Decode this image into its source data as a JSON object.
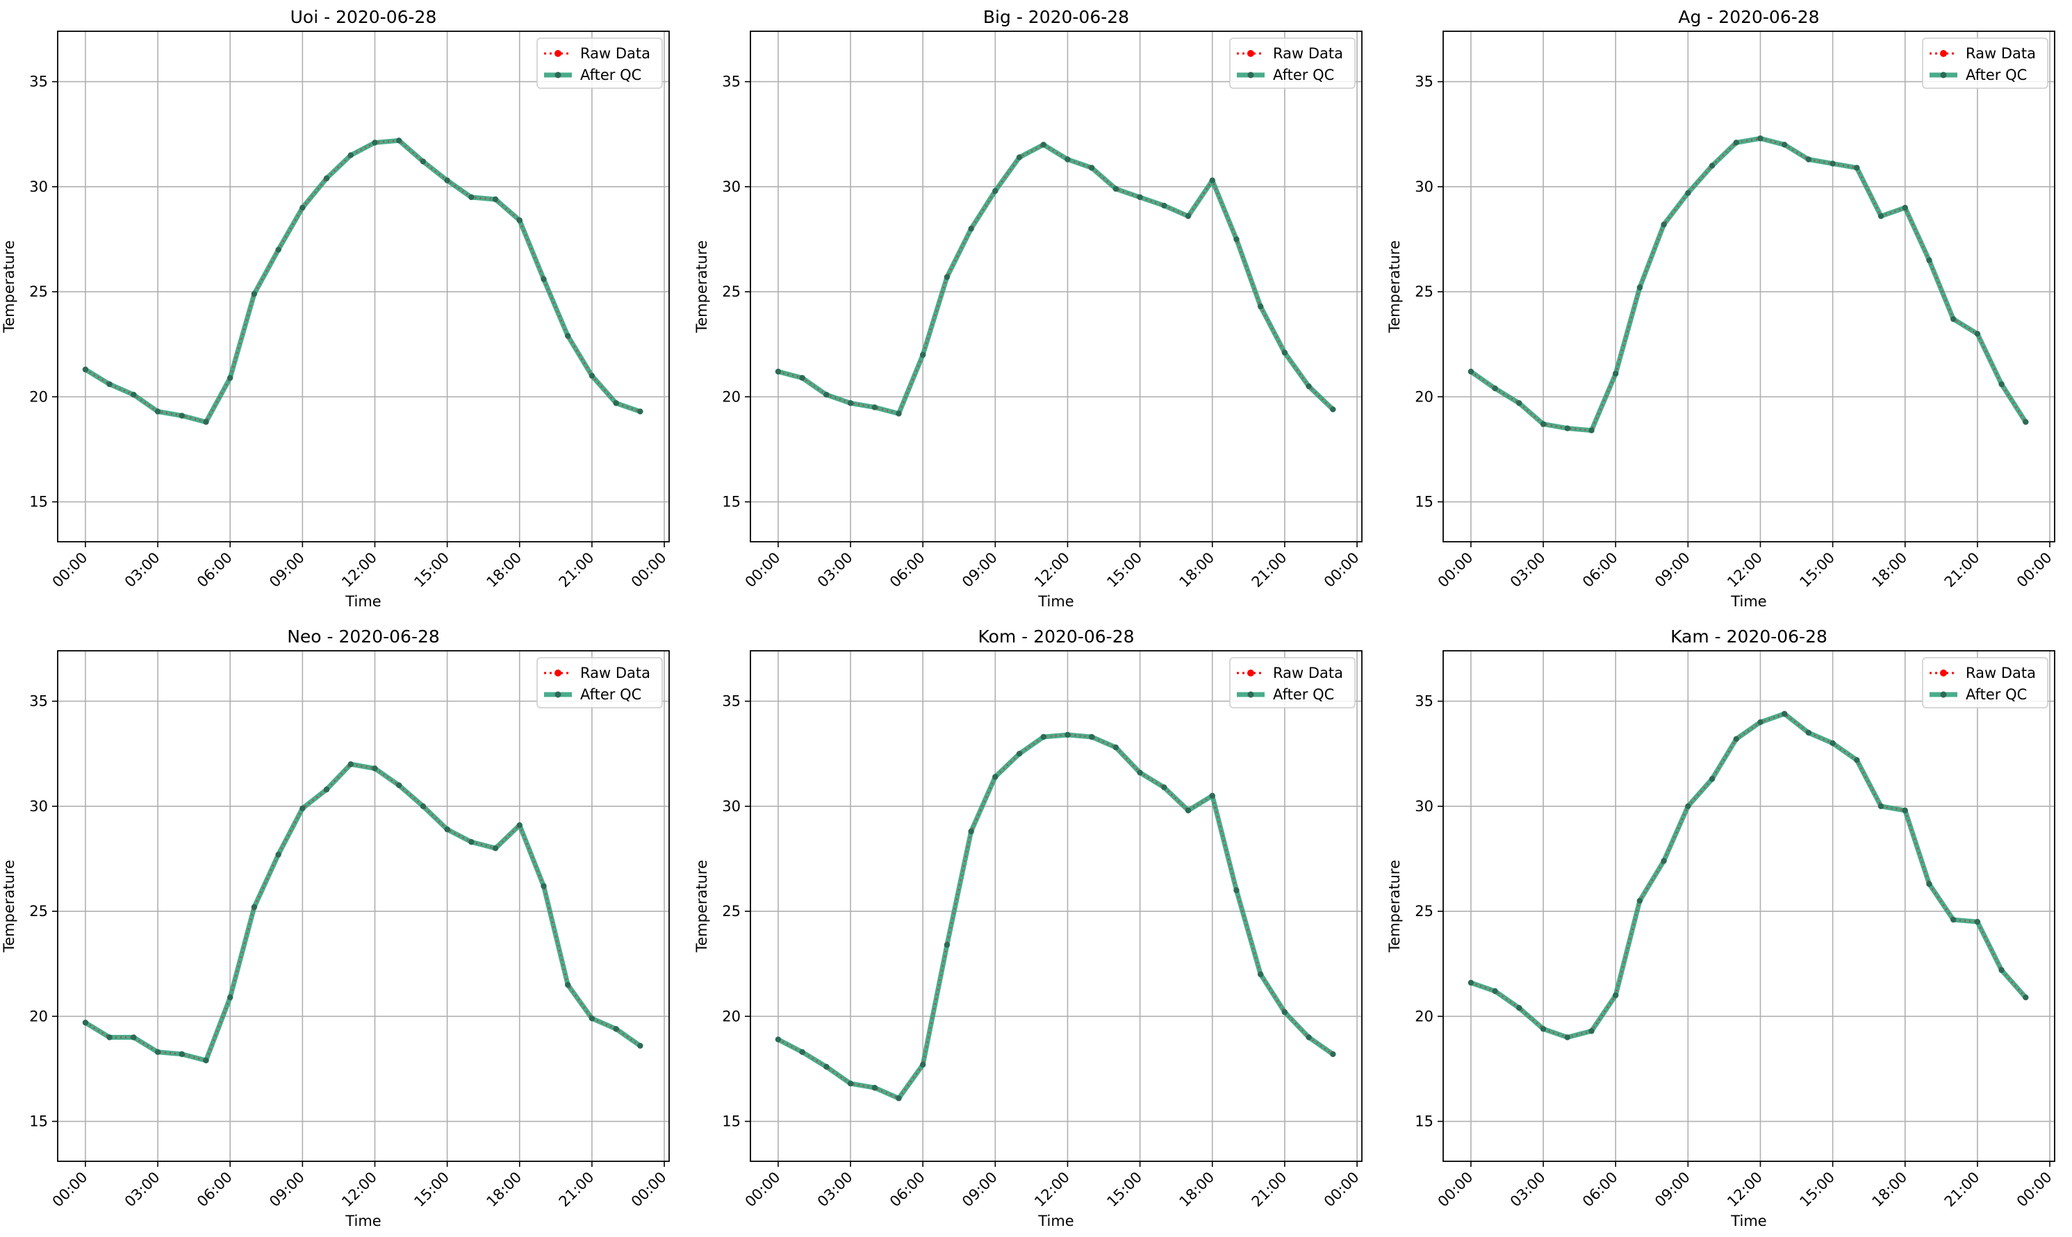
{
  "colors": {
    "raw": "#ff0000",
    "qc": "#2a9d78",
    "qc_marker": "#2d6a55",
    "grid": "#b0b0b0"
  },
  "chart_data": [
    {
      "type": "line",
      "title": "Uoi - 2020-06-28",
      "xlabel": "Time",
      "ylabel": "Temperature",
      "x_hours": [
        0,
        1,
        2,
        3,
        4,
        5,
        6,
        7,
        8,
        9,
        10,
        11,
        12,
        13,
        14,
        15,
        16,
        17,
        18,
        19,
        20,
        21,
        22,
        23
      ],
      "xticks": [
        "00:00",
        "03:00",
        "06:00",
        "09:00",
        "12:00",
        "15:00",
        "18:00",
        "21:00",
        "00:00"
      ],
      "yticks": [
        15,
        20,
        25,
        30,
        35
      ],
      "ylim": [
        13.1,
        37.4
      ],
      "grid": true,
      "legend_position": "top-right",
      "series": [
        {
          "name": "Raw Data",
          "style": "dotted",
          "values": [
            21.3,
            20.6,
            20.1,
            19.3,
            19.1,
            18.8,
            20.9,
            24.9,
            27.0,
            29.0,
            30.4,
            31.5,
            32.1,
            32.2,
            31.2,
            30.3,
            29.5,
            29.4,
            28.4,
            25.6,
            22.9,
            21.0,
            19.7,
            19.3
          ]
        },
        {
          "name": "After QC",
          "style": "solid",
          "values": [
            21.3,
            20.6,
            20.1,
            19.3,
            19.1,
            18.8,
            20.9,
            24.9,
            27.0,
            29.0,
            30.4,
            31.5,
            32.1,
            32.2,
            31.2,
            30.3,
            29.5,
            29.4,
            28.4,
            25.6,
            22.9,
            21.0,
            19.7,
            19.3
          ]
        }
      ]
    },
    {
      "type": "line",
      "title": "Big - 2020-06-28",
      "xlabel": "Time",
      "ylabel": "Temperature",
      "x_hours": [
        0,
        1,
        2,
        3,
        4,
        5,
        6,
        7,
        8,
        9,
        10,
        11,
        12,
        13,
        14,
        15,
        16,
        17,
        18,
        19,
        20,
        21,
        22,
        23
      ],
      "xticks": [
        "00:00",
        "03:00",
        "06:00",
        "09:00",
        "12:00",
        "15:00",
        "18:00",
        "21:00",
        "00:00"
      ],
      "yticks": [
        15,
        20,
        25,
        30,
        35
      ],
      "ylim": [
        13.1,
        37.4
      ],
      "grid": true,
      "legend_position": "top-right",
      "series": [
        {
          "name": "Raw Data",
          "style": "dotted",
          "values": [
            21.2,
            20.9,
            20.1,
            19.7,
            19.5,
            19.2,
            22.0,
            25.7,
            28.0,
            29.8,
            31.4,
            32.0,
            31.3,
            30.9,
            29.9,
            29.5,
            29.1,
            28.6,
            30.3,
            27.5,
            24.3,
            22.1,
            20.5,
            19.4
          ]
        },
        {
          "name": "After QC",
          "style": "solid",
          "values": [
            21.2,
            20.9,
            20.1,
            19.7,
            19.5,
            19.2,
            22.0,
            25.7,
            28.0,
            29.8,
            31.4,
            32.0,
            31.3,
            30.9,
            29.9,
            29.5,
            29.1,
            28.6,
            30.3,
            27.5,
            24.3,
            22.1,
            20.5,
            19.4
          ]
        }
      ]
    },
    {
      "type": "line",
      "title": "Ag - 2020-06-28",
      "xlabel": "Time",
      "ylabel": "Temperature",
      "x_hours": [
        0,
        1,
        2,
        3,
        4,
        5,
        6,
        7,
        8,
        9,
        10,
        11,
        12,
        13,
        14,
        15,
        16,
        17,
        18,
        19,
        20,
        21,
        22,
        23
      ],
      "xticks": [
        "00:00",
        "03:00",
        "06:00",
        "09:00",
        "12:00",
        "15:00",
        "18:00",
        "21:00",
        "00:00"
      ],
      "yticks": [
        15,
        20,
        25,
        30,
        35
      ],
      "ylim": [
        13.1,
        37.4
      ],
      "grid": true,
      "legend_position": "top-right",
      "series": [
        {
          "name": "Raw Data",
          "style": "dotted",
          "values": [
            21.2,
            20.4,
            19.7,
            18.7,
            18.5,
            18.4,
            21.1,
            25.2,
            28.2,
            29.7,
            31.0,
            32.1,
            32.3,
            32.0,
            31.3,
            31.1,
            30.9,
            28.6,
            29.0,
            26.5,
            23.7,
            23.0,
            20.6,
            18.8
          ]
        },
        {
          "name": "After QC",
          "style": "solid",
          "values": [
            21.2,
            20.4,
            19.7,
            18.7,
            18.5,
            18.4,
            21.1,
            25.2,
            28.2,
            29.7,
            31.0,
            32.1,
            32.3,
            32.0,
            31.3,
            31.1,
            30.9,
            28.6,
            29.0,
            26.5,
            23.7,
            23.0,
            20.6,
            18.8
          ]
        }
      ]
    },
    {
      "type": "line",
      "title": "Neo - 2020-06-28",
      "xlabel": "Time",
      "ylabel": "Temperature",
      "x_hours": [
        0,
        1,
        2,
        3,
        4,
        5,
        6,
        7,
        8,
        9,
        10,
        11,
        12,
        13,
        14,
        15,
        16,
        17,
        18,
        19,
        20,
        21,
        22,
        23
      ],
      "xticks": [
        "00:00",
        "03:00",
        "06:00",
        "09:00",
        "12:00",
        "15:00",
        "18:00",
        "21:00",
        "00:00"
      ],
      "yticks": [
        15,
        20,
        25,
        30,
        35
      ],
      "ylim": [
        13.1,
        37.4
      ],
      "grid": true,
      "legend_position": "top-right",
      "series": [
        {
          "name": "Raw Data",
          "style": "dotted",
          "values": [
            19.7,
            19.0,
            19.0,
            18.3,
            18.2,
            17.9,
            20.9,
            25.2,
            27.7,
            29.9,
            30.8,
            32.0,
            31.8,
            31.0,
            30.0,
            28.9,
            28.3,
            28.0,
            29.1,
            26.2,
            21.5,
            19.9,
            19.4,
            18.6
          ]
        },
        {
          "name": "After QC",
          "style": "solid",
          "values": [
            19.7,
            19.0,
            19.0,
            18.3,
            18.2,
            17.9,
            20.9,
            25.2,
            27.7,
            29.9,
            30.8,
            32.0,
            31.8,
            31.0,
            30.0,
            28.9,
            28.3,
            28.0,
            29.1,
            26.2,
            21.5,
            19.9,
            19.4,
            18.6
          ]
        }
      ]
    },
    {
      "type": "line",
      "title": "Kom - 2020-06-28",
      "xlabel": "Time",
      "ylabel": "Temperature",
      "x_hours": [
        0,
        1,
        2,
        3,
        4,
        5,
        6,
        7,
        8,
        9,
        10,
        11,
        12,
        13,
        14,
        15,
        16,
        17,
        18,
        19,
        20,
        21,
        22,
        23
      ],
      "xticks": [
        "00:00",
        "03:00",
        "06:00",
        "09:00",
        "12:00",
        "15:00",
        "18:00",
        "21:00",
        "00:00"
      ],
      "yticks": [
        15,
        20,
        25,
        30,
        35
      ],
      "ylim": [
        13.1,
        37.4
      ],
      "grid": true,
      "legend_position": "top-right",
      "series": [
        {
          "name": "Raw Data",
          "style": "dotted",
          "values": [
            18.9,
            18.3,
            17.6,
            16.8,
            16.6,
            16.1,
            17.7,
            23.4,
            28.8,
            31.4,
            32.5,
            33.3,
            33.4,
            33.3,
            32.8,
            31.6,
            30.9,
            29.8,
            30.5,
            26.0,
            22.0,
            20.2,
            19.0,
            18.2
          ]
        },
        {
          "name": "After QC",
          "style": "solid",
          "values": [
            18.9,
            18.3,
            17.6,
            16.8,
            16.6,
            16.1,
            17.7,
            23.4,
            28.8,
            31.4,
            32.5,
            33.3,
            33.4,
            33.3,
            32.8,
            31.6,
            30.9,
            29.8,
            30.5,
            26.0,
            22.0,
            20.2,
            19.0,
            18.2
          ]
        }
      ]
    },
    {
      "type": "line",
      "title": "Kam - 2020-06-28",
      "xlabel": "Time",
      "ylabel": "Temperature",
      "x_hours": [
        0,
        1,
        2,
        3,
        4,
        5,
        6,
        7,
        8,
        9,
        10,
        11,
        12,
        13,
        14,
        15,
        16,
        17,
        18,
        19,
        20,
        21,
        22,
        23
      ],
      "xticks": [
        "00:00",
        "03:00",
        "06:00",
        "09:00",
        "12:00",
        "15:00",
        "18:00",
        "21:00",
        "00:00"
      ],
      "yticks": [
        15,
        20,
        25,
        30,
        35
      ],
      "ylim": [
        13.1,
        37.4
      ],
      "grid": true,
      "legend_position": "top-right",
      "series": [
        {
          "name": "Raw Data",
          "style": "dotted",
          "values": [
            21.6,
            21.2,
            20.4,
            19.4,
            19.0,
            19.3,
            21.0,
            25.5,
            27.4,
            30.0,
            31.3,
            33.2,
            34.0,
            34.4,
            33.5,
            33.0,
            32.2,
            30.0,
            29.8,
            26.3,
            24.6,
            24.5,
            22.2,
            20.9
          ]
        },
        {
          "name": "After QC",
          "style": "solid",
          "values": [
            21.6,
            21.2,
            20.4,
            19.4,
            19.0,
            19.3,
            21.0,
            25.5,
            27.4,
            30.0,
            31.3,
            33.2,
            34.0,
            34.4,
            33.5,
            33.0,
            32.2,
            30.0,
            29.8,
            26.3,
            24.6,
            24.5,
            22.2,
            20.9
          ]
        }
      ]
    }
  ]
}
